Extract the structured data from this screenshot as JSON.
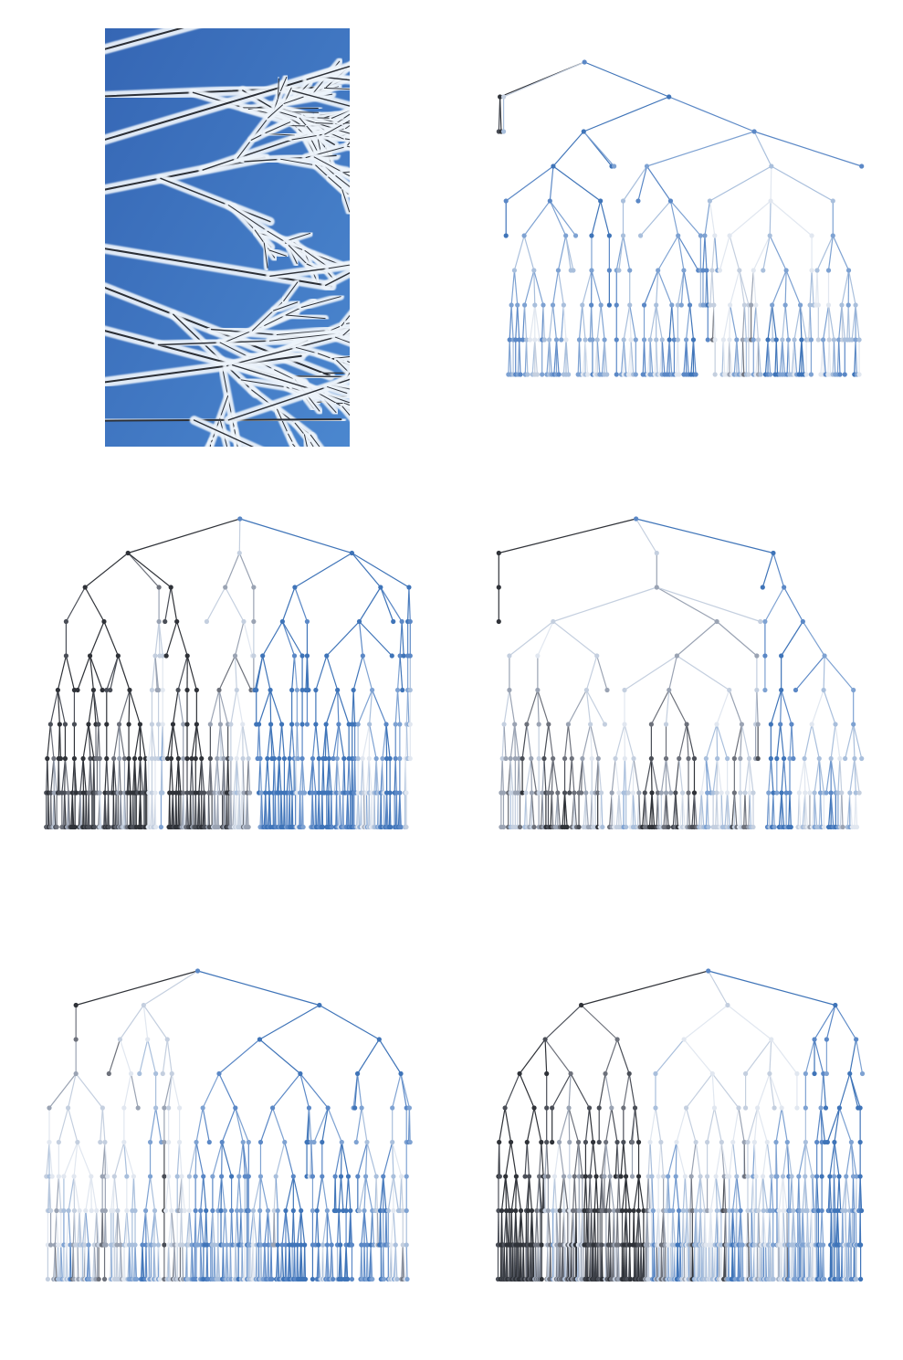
{
  "photo": {
    "subject": "frost-covered-branches",
    "colors": {
      "sky_top": "#3566b4",
      "sky_bottom": "#4b87cf",
      "frost": "#eef4fb",
      "twig": "#2b2f36"
    }
  },
  "palette": [
    "#2f3238",
    "#4a4e57",
    "#6d717b",
    "#9aa3b3",
    "#c4cfdf",
    "#e1e7f0",
    "#a9bfdc",
    "#7ea2d2",
    "#5b88c6",
    "#3f74b8"
  ],
  "trees": [
    {
      "id": "tree-1",
      "seed": 7,
      "depth": 9,
      "branching": 3
    },
    {
      "id": "tree-2",
      "seed": 13,
      "depth": 9,
      "branching": 3
    },
    {
      "id": "tree-3",
      "seed": 21,
      "depth": 9,
      "branching": 3
    },
    {
      "id": "tree-4",
      "seed": 34,
      "depth": 9,
      "branching": 3
    },
    {
      "id": "tree-5",
      "seed": 55,
      "depth": 9,
      "branching": 3
    }
  ]
}
